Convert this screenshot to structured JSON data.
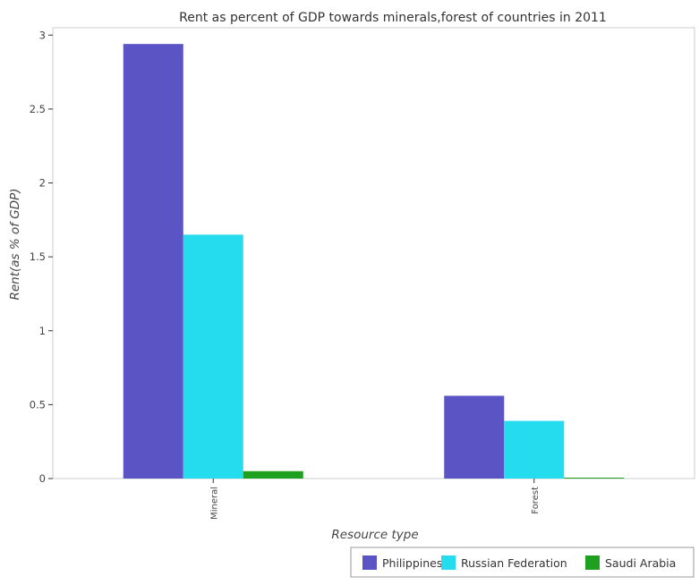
{
  "chart_data": {
    "type": "bar",
    "title": "Rent as percent of GDP towards minerals,forest of countries in 2011",
    "xlabel": "Resource type",
    "ylabel": "Rent(as % of GDP)",
    "categories": [
      "Mineral",
      "Forest"
    ],
    "ylim": [
      0,
      3.05
    ],
    "yticks": [
      0,
      0.5,
      1,
      1.5,
      2,
      2.5,
      3
    ],
    "ytick_labels": [
      "0",
      "0.5",
      "1",
      "1.5",
      "2",
      "2.5",
      "3"
    ],
    "grid": false,
    "legend_position": "bottom-right",
    "series": [
      {
        "name": "Philippines",
        "color": "#5b54c4",
        "values": [
          2.94,
          0.56
        ]
      },
      {
        "name": "Russian Federation",
        "color": "#25dcef",
        "values": [
          1.65,
          0.39
        ]
      },
      {
        "name": "Saudi Arabia",
        "color": "#20a020",
        "values": [
          0.05,
          0.004
        ]
      }
    ]
  }
}
